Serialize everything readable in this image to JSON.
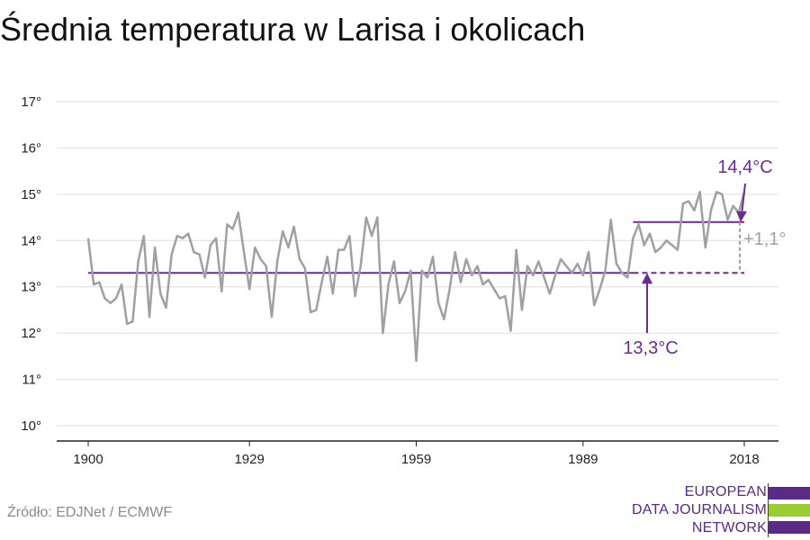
{
  "title": "Średnia temperatura w Larisa i okolicach",
  "source": "Źródło: EDJNet / ECMWF",
  "logo": {
    "lines": [
      "EUROPEAN",
      "DATA JOURNALISM",
      "NETWORK"
    ],
    "colors": {
      "purple": "#5b2a86",
      "green": "#9acd32"
    }
  },
  "colors": {
    "line": "#a0a0a0",
    "accent": "#6a2c91",
    "grid": "#dddddd",
    "diff": "#a0a0a0"
  },
  "chart_data": {
    "type": "line",
    "title": "Średnia temperatura w Larisa i okolicach",
    "xlabel": "",
    "ylabel": "",
    "x_ticks": [
      "1900",
      "1929",
      "1959",
      "1989",
      "2018"
    ],
    "x_tick_values": [
      1900,
      1929,
      1959,
      1989,
      2018
    ],
    "y_ticks": [
      "10°",
      "11°",
      "12°",
      "13°",
      "14°",
      "15°",
      "16°",
      "17°"
    ],
    "y_tick_values": [
      10,
      11,
      12,
      13,
      14,
      15,
      16,
      17
    ],
    "xlim": [
      1900,
      2018
    ],
    "ylim": [
      10,
      17
    ],
    "grid": true,
    "series": [
      {
        "x": [
          1900,
          1901,
          1902,
          1903,
          1904,
          1905,
          1906,
          1907,
          1908,
          1909,
          1910,
          1911,
          1912,
          1913,
          1914,
          1915,
          1916,
          1917,
          1918,
          1919,
          1920,
          1921,
          1922,
          1923,
          1924,
          1925,
          1926,
          1927,
          1928,
          1929,
          1930,
          1931,
          1932,
          1933,
          1934,
          1935,
          1936,
          1937,
          1938,
          1939,
          1940,
          1941,
          1942,
          1943,
          1944,
          1945,
          1946,
          1947,
          1948,
          1949,
          1950,
          1951,
          1952,
          1953,
          1954,
          1955,
          1956,
          1957,
          1958,
          1959,
          1960,
          1961,
          1962,
          1963,
          1964,
          1965,
          1966,
          1967,
          1968,
          1969,
          1970,
          1971,
          1972,
          1973,
          1974,
          1975,
          1976,
          1977,
          1978,
          1979,
          1980,
          1981,
          1982,
          1983,
          1984,
          1985,
          1986,
          1987,
          1988,
          1989,
          1990,
          1991,
          1992,
          1993,
          1994,
          1995,
          1996,
          1997,
          1998,
          1999,
          2000,
          2001,
          2002,
          2003,
          2004,
          2005,
          2006,
          2007,
          2008,
          2009,
          2010,
          2011,
          2012,
          2013,
          2014,
          2015,
          2016,
          2017,
          2018
        ],
        "values": [
          14.05,
          13.05,
          13.1,
          12.75,
          12.65,
          12.75,
          13.05,
          12.2,
          12.25,
          13.55,
          14.1,
          12.35,
          13.85,
          12.85,
          12.55,
          13.7,
          14.1,
          14.05,
          14.15,
          13.75,
          13.7,
          13.2,
          13.9,
          14.05,
          12.9,
          14.35,
          14.25,
          14.6,
          13.75,
          12.95,
          13.85,
          13.6,
          13.45,
          12.35,
          13.55,
          14.2,
          13.85,
          14.3,
          13.6,
          13.4,
          12.45,
          12.5,
          13.1,
          13.65,
          12.85,
          13.8,
          13.8,
          14.1,
          12.8,
          13.45,
          14.5,
          14.1,
          14.5,
          12.0,
          13.05,
          13.55,
          12.65,
          12.9,
          13.35,
          11.4,
          13.35,
          13.2,
          13.65,
          12.65,
          12.3,
          12.95,
          13.75,
          13.1,
          13.6,
          13.25,
          13.45,
          13.05,
          13.15,
          12.95,
          12.75,
          12.8,
          12.05,
          13.8,
          12.5,
          13.45,
          13.25,
          13.55,
          13.2,
          12.85,
          13.25,
          13.6,
          13.45,
          13.3,
          13.5,
          13.25,
          13.75,
          12.6,
          12.95,
          13.35,
          14.45,
          13.5,
          13.3,
          13.2,
          14.05,
          14.35,
          13.9,
          14.15,
          13.75,
          13.85,
          14.0,
          13.9,
          13.8,
          14.8,
          14.85,
          14.65,
          15.05,
          13.85,
          14.65,
          15.05,
          15.0,
          14.45,
          14.75,
          14.6,
          15.05
        ]
      }
    ],
    "reference_lines": [
      {
        "label": "13,3°C",
        "value": 13.3,
        "x_from": 1900,
        "x_to": 2018
      },
      {
        "label": "14,4°C",
        "value": 14.4,
        "x_from": 1998,
        "x_to": 2018
      }
    ],
    "difference_label": "+1,1°"
  }
}
